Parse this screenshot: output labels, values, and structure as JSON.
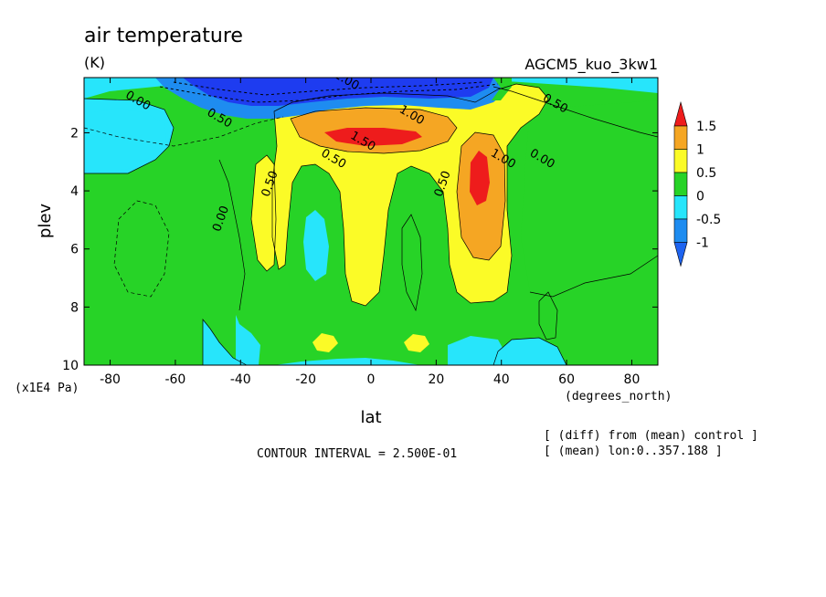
{
  "chart_data": {
    "type": "contour",
    "title": "air temperature",
    "units": "(K)",
    "model_label": "AGCM5_kuo_3kw1",
    "xlabel": "lat",
    "x_units": "(degrees_north)",
    "ylabel": "plev",
    "y_units": "(x1E4 Pa)",
    "xlim": [
      -88,
      88
    ],
    "ylim": [
      10,
      0.1
    ],
    "x_ticks": [
      -80,
      -60,
      -40,
      -20,
      0,
      20,
      40,
      60,
      80
    ],
    "x_tick_labels": [
      "-80",
      "-60",
      "-40",
      "-20",
      "0",
      "20",
      "40",
      "60",
      "80"
    ],
    "y_ticks": [
      2,
      4,
      6,
      8,
      10
    ],
    "y_tick_labels": [
      "2",
      "4",
      "6",
      "8",
      "10"
    ],
    "contour_interval_text": "CONTOUR INTERVAL = 2.500E-01",
    "notes": [
      "[ (diff) from (mean) control ]",
      "[ (mean) lon:0..357.188 ]"
    ],
    "colorbar": {
      "levels": [
        "1.5",
        "1",
        "0.5",
        "0",
        "-0.5",
        "-1"
      ],
      "colors": [
        "#ee1c1c",
        "#f5a623",
        "#fbfb27",
        "#27d327",
        "#27e5fb",
        "#1e8cf0"
      ],
      "extend_top_color": "#ee1c1c",
      "extend_bottom_color": "#1e64f0"
    },
    "contour_labels": [
      {
        "text": "0.00",
        "lat": -72,
        "p": 1.0
      },
      {
        "text": "0.50",
        "lat": -47,
        "p": 1.6
      },
      {
        "text": "0.00",
        "lat": -45,
        "p": 5.0
      },
      {
        "text": "0.50",
        "lat": -30,
        "p": 3.8
      },
      {
        "text": "0.50",
        "lat": -12,
        "p": 3.0
      },
      {
        "text": "1.50",
        "lat": -3,
        "p": 2.4
      },
      {
        "text": "1.00",
        "lat": 12,
        "p": 1.5
      },
      {
        "text": "1.00",
        "lat": -8,
        "p": 0.3
      },
      {
        "text": "0.50",
        "lat": 23,
        "p": 3.8
      },
      {
        "text": "1.00",
        "lat": 40,
        "p": 3.0
      },
      {
        "text": "0.00",
        "lat": 52,
        "p": 3.0
      },
      {
        "text": "0.50",
        "lat": 56,
        "p": 1.1
      }
    ],
    "features": {
      "background_value_range": "-0.5 to 0",
      "top_cold_anomaly": {
        "lat_range": [
          -45,
          40
        ],
        "p_range": [
          0.1,
          1.5
        ],
        "min_value": "< -1"
      },
      "warm_max_1": {
        "lat": -3,
        "p": 2.0,
        "value": "> 1.5"
      },
      "warm_max_2": {
        "lat": 33,
        "p": 3.5,
        "value": "> 1.5"
      }
    }
  }
}
